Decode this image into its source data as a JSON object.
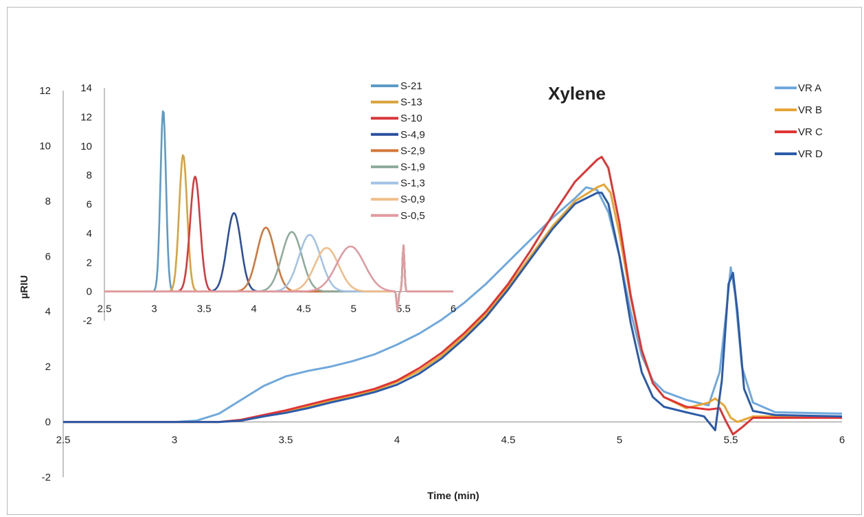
{
  "chart_data": [
    {
      "id": "main",
      "type": "line",
      "title": "Xylene",
      "xlabel": "Time (min)",
      "ylabel": "µRIU",
      "xlim": [
        2.5,
        6
      ],
      "ylim": [
        -2,
        12
      ],
      "xticks": [
        2.5,
        3,
        3.5,
        4,
        4.5,
        5,
        5.5,
        6
      ],
      "yticks": [
        -2,
        0,
        2,
        4,
        6,
        8,
        10,
        12
      ],
      "legend_position": "top-right",
      "series": [
        {
          "name": "VR A",
          "color": "#6fa8dc",
          "x": [
            2.5,
            3.0,
            3.1,
            3.2,
            3.3,
            3.4,
            3.5,
            3.6,
            3.7,
            3.8,
            3.9,
            4.0,
            4.1,
            4.2,
            4.3,
            4.4,
            4.5,
            4.6,
            4.7,
            4.8,
            4.85,
            4.9,
            4.95,
            5.0,
            5.05,
            5.1,
            5.15,
            5.2,
            5.3,
            5.4,
            5.45,
            5.48,
            5.5,
            5.52,
            5.55,
            5.6,
            5.7,
            6.0
          ],
          "y": [
            0.0,
            0.0,
            0.05,
            0.3,
            0.8,
            1.3,
            1.65,
            1.85,
            2.0,
            2.2,
            2.45,
            2.8,
            3.2,
            3.7,
            4.3,
            5.0,
            5.8,
            6.6,
            7.4,
            8.1,
            8.5,
            8.4,
            7.6,
            6.0,
            4.0,
            2.4,
            1.5,
            1.1,
            0.8,
            0.6,
            1.8,
            4.0,
            5.6,
            4.6,
            2.0,
            0.7,
            0.35,
            0.3
          ]
        },
        {
          "name": "VR B",
          "color": "#e6a532",
          "x": [
            2.5,
            3.0,
            3.2,
            3.3,
            3.4,
            3.5,
            3.6,
            3.7,
            3.8,
            3.9,
            4.0,
            4.1,
            4.2,
            4.3,
            4.4,
            4.5,
            4.6,
            4.7,
            4.8,
            4.9,
            4.93,
            4.96,
            5.0,
            5.05,
            5.1,
            5.15,
            5.2,
            5.3,
            5.4,
            5.43,
            5.47,
            5.5,
            5.53,
            5.6,
            6.0
          ],
          "y": [
            0.0,
            0.0,
            0.0,
            0.05,
            0.2,
            0.35,
            0.55,
            0.75,
            0.95,
            1.15,
            1.45,
            1.85,
            2.4,
            3.1,
            3.9,
            4.9,
            6.0,
            7.1,
            8.0,
            8.5,
            8.6,
            8.3,
            6.8,
            4.5,
            2.6,
            1.4,
            0.9,
            0.5,
            0.7,
            0.85,
            0.6,
            0.15,
            0.0,
            0.2,
            0.2
          ]
        },
        {
          "name": "VR C",
          "color": "#e03434",
          "x": [
            2.5,
            3.0,
            3.2,
            3.3,
            3.4,
            3.5,
            3.6,
            3.7,
            3.8,
            3.9,
            4.0,
            4.1,
            4.2,
            4.3,
            4.4,
            4.5,
            4.6,
            4.7,
            4.8,
            4.9,
            4.92,
            4.95,
            5.0,
            5.05,
            5.1,
            5.15,
            5.2,
            5.3,
            5.4,
            5.45,
            5.48,
            5.51,
            5.55,
            5.6,
            6.0
          ],
          "y": [
            0.0,
            0.0,
            0.0,
            0.08,
            0.25,
            0.42,
            0.62,
            0.82,
            1.0,
            1.2,
            1.5,
            1.95,
            2.5,
            3.2,
            4.0,
            5.0,
            6.2,
            7.5,
            8.7,
            9.5,
            9.6,
            9.2,
            7.2,
            4.6,
            2.6,
            1.4,
            0.9,
            0.55,
            0.45,
            0.5,
            0.0,
            -0.45,
            -0.2,
            0.15,
            0.15
          ]
        },
        {
          "name": "VR D",
          "color": "#2a5aa8",
          "x": [
            2.5,
            3.0,
            3.2,
            3.3,
            3.4,
            3.5,
            3.6,
            3.7,
            3.8,
            3.9,
            4.0,
            4.1,
            4.2,
            4.3,
            4.4,
            4.5,
            4.6,
            4.7,
            4.8,
            4.9,
            4.92,
            4.95,
            5.0,
            5.05,
            5.1,
            5.15,
            5.2,
            5.3,
            5.38,
            5.43,
            5.46,
            5.49,
            5.51,
            5.53,
            5.56,
            5.6,
            5.7,
            6.0
          ],
          "y": [
            0.0,
            0.0,
            0.0,
            0.05,
            0.2,
            0.33,
            0.5,
            0.7,
            0.88,
            1.08,
            1.35,
            1.75,
            2.3,
            3.0,
            3.8,
            4.8,
            5.9,
            7.0,
            7.9,
            8.3,
            8.3,
            7.9,
            6.0,
            3.6,
            1.8,
            0.9,
            0.55,
            0.35,
            0.2,
            -0.3,
            1.5,
            5.0,
            5.4,
            4.0,
            1.2,
            0.4,
            0.25,
            0.2
          ]
        }
      ]
    },
    {
      "id": "inset",
      "type": "line",
      "xlim": [
        2.5,
        6
      ],
      "ylim": [
        -2,
        14
      ],
      "xticks": [
        2.5,
        3,
        3.5,
        4,
        4.5,
        5,
        5.5,
        6
      ],
      "yticks": [
        -2,
        0,
        2,
        4,
        6,
        8,
        10,
        12,
        14
      ],
      "legend_position": "top-right",
      "series": [
        {
          "name": "S-21",
          "color": "#5b9bc7",
          "center": 3.09,
          "sigma": 0.028,
          "peak": 12.5
        },
        {
          "name": "S-13",
          "color": "#d9a23a",
          "center": 3.29,
          "sigma": 0.04,
          "peak": 9.4
        },
        {
          "name": "S-10",
          "color": "#d8383c",
          "center": 3.41,
          "sigma": 0.05,
          "peak": 7.9
        },
        {
          "name": "S-4,9",
          "color": "#2a4f9c",
          "center": 3.8,
          "sigma": 0.07,
          "peak": 5.4
        },
        {
          "name": "S-2,9",
          "color": "#d2773a",
          "center": 4.12,
          "sigma": 0.09,
          "peak": 4.4
        },
        {
          "name": "S-1,9",
          "color": "#8eab9b",
          "center": 4.38,
          "sigma": 0.1,
          "peak": 4.1
        },
        {
          "name": "S-1,3",
          "color": "#a3c3e6",
          "center": 4.56,
          "sigma": 0.11,
          "peak": 3.9
        },
        {
          "name": "S-0,9",
          "color": "#f1bd8a",
          "center": 4.73,
          "sigma": 0.12,
          "peak": 3.0
        },
        {
          "name": "S-0,5",
          "color": "#e09aa0",
          "center": 4.97,
          "sigma": 0.14,
          "peak": 3.1
        }
      ],
      "system_peak": {
        "center": 5.5,
        "dip": -1.3,
        "spike": 3.2
      }
    }
  ]
}
